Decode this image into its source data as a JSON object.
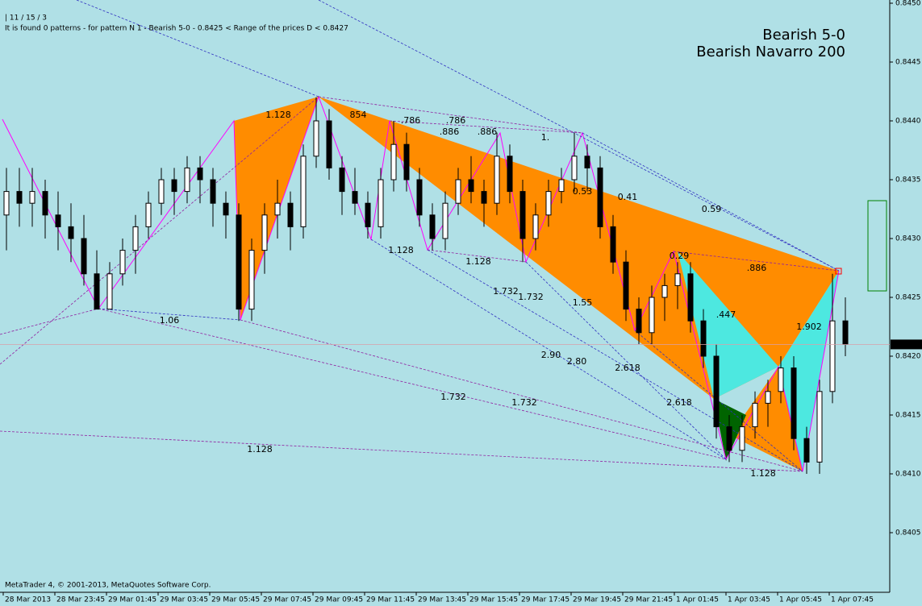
{
  "chart_data": {
    "type": "candlestick",
    "header": "| 11 / 15 / 3",
    "status": "It is found 0 patterns  -  for pattern N 1 - Bearish 5-0  - 0.8425  < Range of the prices D  < 0.8427",
    "pattern_names": [
      {
        "name": "Bearish 5-0",
        "color": "#ff1493"
      },
      {
        "name": "Bearish Navarro 200",
        "color": "#008000"
      }
    ],
    "footer": "MetaTrader 4, © 2001-2013, MetaQuotes Software Corp.",
    "bid": 0.8421,
    "ylim": [
      0.84,
      0.845
    ],
    "yticks": [
      0.8405,
      {
        "value": 0.841,
        "label": "0.8410"
      },
      0.8415,
      {
        "value": 0.842,
        "label": "0.8420"
      },
      0.8425,
      {
        "value": 0.843,
        "label": "0.8430"
      },
      0.8435,
      {
        "value": 0.844,
        "label": "0.8440"
      },
      0.8445,
      {
        "value": 0.845,
        "label": "0.8450"
      }
    ],
    "x_labels": [
      "28 Mar 2013",
      "28 Mar 23:45",
      "29 Mar 01:45",
      "29 Mar 03:45",
      "29 Mar 05:45",
      "29 Mar 07:45",
      "29 Mar 09:45",
      "29 Mar 11:45",
      "29 Mar 13:45",
      "29 Mar 15:45",
      "29 Mar 17:45",
      "29 Mar 19:45",
      "29 Mar 21:45",
      "1 Apr 01:45",
      "1 Apr 03:45",
      "1 Apr 05:45",
      "1 Apr 07:45"
    ],
    "pattern_labels": [
      "1.128",
      "854",
      ".786",
      ".786",
      ".886",
      ".886",
      "1.",
      "0.53",
      "0.41",
      "0.59",
      "1.128",
      "1.128",
      "1.732",
      "1.732",
      "1.55",
      "0.29",
      ".886",
      ".447",
      "1.902",
      "1.06",
      "2.90",
      "2.80",
      "2.618",
      "2.618",
      "1.732",
      "1.732",
      "1.128",
      "1.128"
    ],
    "candles": [
      [
        0.8432,
        0.8436,
        0.8429,
        0.8434
      ],
      [
        0.8434,
        0.8436,
        0.8431,
        0.8433
      ],
      [
        0.8433,
        0.8436,
        0.8431,
        0.8434
      ],
      [
        0.8434,
        0.8435,
        0.843,
        0.8432
      ],
      [
        0.8432,
        0.8434,
        0.8429,
        0.8431
      ],
      [
        0.8431,
        0.8433,
        0.8428,
        0.843
      ],
      [
        0.843,
        0.8432,
        0.8426,
        0.8427
      ],
      [
        0.8427,
        0.8429,
        0.8424,
        0.8424
      ],
      [
        0.8424,
        0.8428,
        0.8424,
        0.8427
      ],
      [
        0.8427,
        0.843,
        0.8426,
        0.8429
      ],
      [
        0.8429,
        0.8432,
        0.8427,
        0.8431
      ],
      [
        0.8431,
        0.8434,
        0.843,
        0.8433
      ],
      [
        0.8433,
        0.8436,
        0.8432,
        0.8435
      ],
      [
        0.8435,
        0.8436,
        0.8432,
        0.8434
      ],
      [
        0.8434,
        0.8437,
        0.8433,
        0.8436
      ],
      [
        0.8436,
        0.8437,
        0.8433,
        0.8435
      ],
      [
        0.8435,
        0.8436,
        0.8431,
        0.8433
      ],
      [
        0.8433,
        0.8434,
        0.843,
        0.8432
      ],
      [
        0.8432,
        0.8433,
        0.8423,
        0.8424
      ],
      [
        0.8424,
        0.843,
        0.8423,
        0.8429
      ],
      [
        0.8429,
        0.8433,
        0.8427,
        0.8432
      ],
      [
        0.8432,
        0.8435,
        0.843,
        0.8433
      ],
      [
        0.8433,
        0.8434,
        0.8429,
        0.8431
      ],
      [
        0.8431,
        0.8438,
        0.843,
        0.8437
      ],
      [
        0.8437,
        0.8442,
        0.8436,
        0.844
      ],
      [
        0.844,
        0.8441,
        0.8435,
        0.8436
      ],
      [
        0.8436,
        0.8437,
        0.8432,
        0.8434
      ],
      [
        0.8434,
        0.8436,
        0.8432,
        0.8433
      ],
      [
        0.8433,
        0.8434,
        0.843,
        0.8431
      ],
      [
        0.8431,
        0.8436,
        0.843,
        0.8435
      ],
      [
        0.8435,
        0.844,
        0.8434,
        0.8438
      ],
      [
        0.8438,
        0.8439,
        0.8434,
        0.8435
      ],
      [
        0.8435,
        0.8436,
        0.8431,
        0.8432
      ],
      [
        0.8432,
        0.8433,
        0.8429,
        0.843
      ],
      [
        0.843,
        0.8434,
        0.8429,
        0.8433
      ],
      [
        0.8433,
        0.8436,
        0.8432,
        0.8435
      ],
      [
        0.8435,
        0.8437,
        0.8433,
        0.8434
      ],
      [
        0.8434,
        0.8435,
        0.8431,
        0.8433
      ],
      [
        0.8433,
        0.8439,
        0.8432,
        0.8437
      ],
      [
        0.8437,
        0.8438,
        0.8433,
        0.8434
      ],
      [
        0.8434,
        0.8435,
        0.8428,
        0.843
      ],
      [
        0.843,
        0.8433,
        0.8429,
        0.8432
      ],
      [
        0.8432,
        0.8435,
        0.8431,
        0.8434
      ],
      [
        0.8434,
        0.8436,
        0.8433,
        0.8435
      ],
      [
        0.8435,
        0.8439,
        0.8434,
        0.8437
      ],
      [
        0.8437,
        0.8438,
        0.8434,
        0.8436
      ],
      [
        0.8436,
        0.8437,
        0.843,
        0.8431
      ],
      [
        0.8431,
        0.8432,
        0.8427,
        0.8428
      ],
      [
        0.8428,
        0.8429,
        0.8423,
        0.8424
      ],
      [
        0.8424,
        0.8425,
        0.8421,
        0.8422
      ],
      [
        0.8422,
        0.8426,
        0.8421,
        0.8425
      ],
      [
        0.8425,
        0.8427,
        0.8423,
        0.8426
      ],
      [
        0.8426,
        0.8428,
        0.8424,
        0.8427
      ],
      [
        0.8427,
        0.8428,
        0.8422,
        0.8423
      ],
      [
        0.8423,
        0.8424,
        0.8419,
        0.842
      ],
      [
        0.842,
        0.8421,
        0.8413,
        0.8414
      ],
      [
        0.8414,
        0.8415,
        0.8411,
        0.8412
      ],
      [
        0.8412,
        0.8415,
        0.8411,
        0.8414
      ],
      [
        0.8414,
        0.8417,
        0.8413,
        0.8416
      ],
      [
        0.8416,
        0.8418,
        0.8414,
        0.8417
      ],
      [
        0.8417,
        0.842,
        0.8416,
        0.8419
      ],
      [
        0.8419,
        0.842,
        0.8412,
        0.8413
      ],
      [
        0.8413,
        0.8414,
        0.841,
        0.8411
      ],
      [
        0.8411,
        0.8418,
        0.841,
        0.8417
      ],
      [
        0.8417,
        0.8427,
        0.8416,
        0.8423
      ],
      [
        0.8423,
        0.8425,
        0.842,
        0.8421
      ]
    ]
  }
}
